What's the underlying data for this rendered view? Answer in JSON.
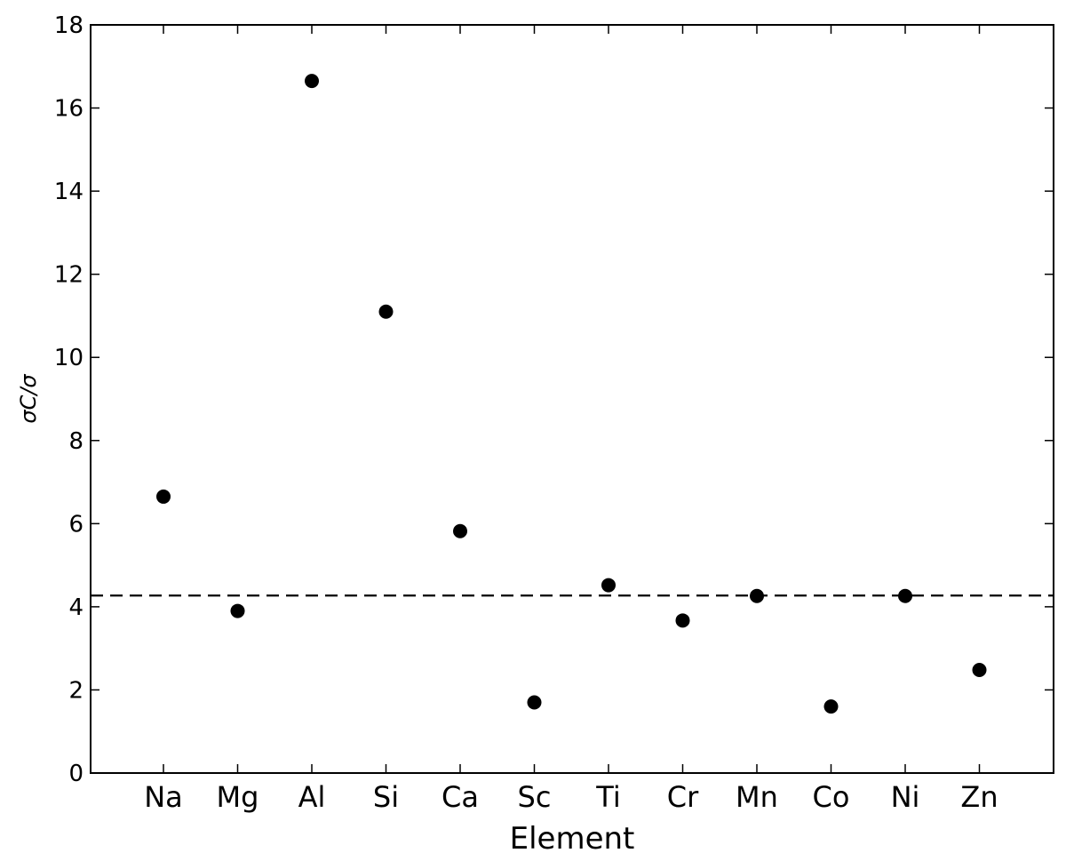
{
  "chart_data": {
    "type": "scatter",
    "categories": [
      "Na",
      "Mg",
      "Al",
      "Si",
      "Ca",
      "Sc",
      "Ti",
      "Cr",
      "Mn",
      "Co",
      "Ni",
      "Zn"
    ],
    "series": [
      {
        "values": [
          6.65,
          3.9,
          16.65,
          11.1,
          5.82,
          1.7,
          4.52,
          3.67,
          4.26,
          1.6,
          4.26,
          2.48
        ],
        "color": "#000000"
      }
    ],
    "reference_line": {
      "y": 4.27,
      "style": "dashed",
      "color": "#000000"
    },
    "xlabel": "Element",
    "ylabel": "σC/σ",
    "ylim": [
      0,
      18
    ],
    "yticks": [
      0,
      2,
      4,
      6,
      8,
      10,
      12,
      14,
      16,
      18
    ],
    "ytick_labels": [
      "0",
      "2",
      "4",
      "6",
      "8",
      "10",
      "12",
      "14",
      "16",
      "18"
    ],
    "grid": false
  }
}
